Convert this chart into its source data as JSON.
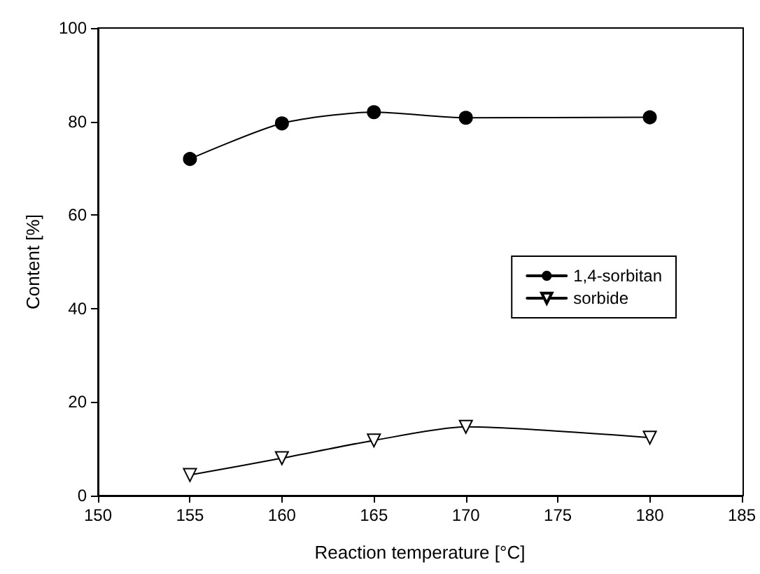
{
  "chart_data": {
    "type": "line",
    "xlabel": "Reaction temperature [°C]",
    "ylabel": "Content [%]",
    "x": [
      155,
      160,
      165,
      170,
      180
    ],
    "series": [
      {
        "name": "1,4-sorbitan",
        "color": "#000000",
        "marker": "circle",
        "values": [
          72.0,
          79.6,
          82.0,
          80.8,
          80.9
        ]
      },
      {
        "name": "sorbide",
        "color": "#000000",
        "marker": "triangle",
        "values": [
          4.4,
          8.0,
          11.8,
          14.7,
          12.4
        ]
      }
    ],
    "xlim": [
      150,
      185
    ],
    "xticks": [
      150,
      155,
      160,
      165,
      170,
      175,
      180,
      185
    ],
    "ylim": [
      0,
      100
    ],
    "yticks": [
      0,
      20,
      40,
      60,
      80,
      100
    ],
    "grid": false,
    "legend": "right",
    "line_style": "solid"
  }
}
